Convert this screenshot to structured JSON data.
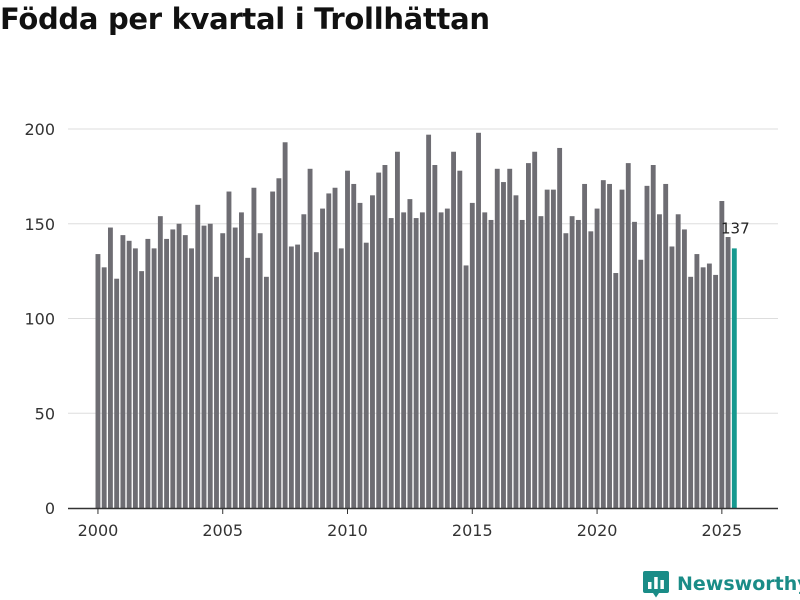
{
  "title": "Födda per kvartal i Trollhättan",
  "brand": {
    "name": "Newsworthy",
    "icon": "newsworthy-logo-icon"
  },
  "colors": {
    "bar": "#6e6d73",
    "highlight": "#16998f",
    "grid": "#dddddd",
    "axis": "#333333",
    "text": "#333333"
  },
  "chart_data": {
    "type": "bar",
    "title": "Födda per kvartal i Trollhättan",
    "xlabel": "",
    "ylabel": "",
    "x_tick_labels": [
      "2000",
      "2005",
      "2010",
      "2015",
      "2020",
      "2025"
    ],
    "y_tick_labels": [
      "0",
      "50",
      "100",
      "150",
      "200"
    ],
    "ylim": [
      0,
      220
    ],
    "xlim": [
      1998.8,
      2027.25
    ],
    "grid": true,
    "start_year": 2000,
    "highlight_label": "137",
    "series": [
      {
        "values": [
          134,
          127,
          148,
          121,
          144,
          141,
          137,
          125,
          142,
          137,
          154,
          142,
          147,
          150,
          144,
          137,
          160,
          149,
          150,
          122,
          145,
          167,
          148,
          156,
          132,
          169,
          145,
          122,
          167,
          174,
          193,
          138,
          139,
          155,
          179,
          135,
          158,
          166,
          169,
          137,
          178,
          171,
          161,
          140,
          165,
          177,
          181,
          153,
          188,
          156,
          163,
          153,
          156,
          197,
          181,
          156,
          158,
          188,
          178,
          128,
          161,
          198,
          156,
          152,
          179,
          172,
          179,
          165,
          152,
          182,
          188,
          154,
          168,
          168,
          190,
          145,
          154,
          152,
          171,
          146,
          158,
          173,
          171,
          124,
          168,
          182,
          151,
          131,
          170,
          181,
          155,
          171,
          138,
          155,
          147,
          122,
          134,
          127,
          129,
          123,
          162,
          143,
          137
        ]
      }
    ]
  }
}
